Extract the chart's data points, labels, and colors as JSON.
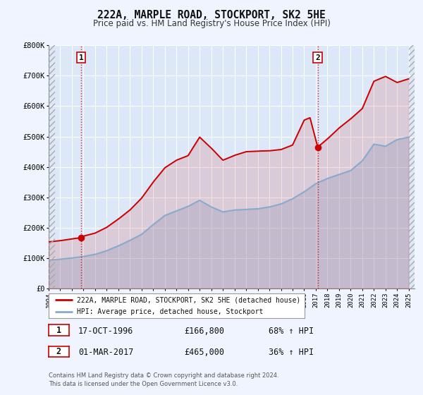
{
  "title": "222A, MARPLE ROAD, STOCKPORT, SK2 5HE",
  "subtitle": "Price paid vs. HM Land Registry's House Price Index (HPI)",
  "background_color": "#f0f4ff",
  "plot_bg_color": "#dce8f8",
  "grid_color": "#c8d8e8",
  "xmin": 1994.0,
  "xmax": 2025.5,
  "ymin": 0,
  "ymax": 800000,
  "yticks": [
    0,
    100000,
    200000,
    300000,
    400000,
    500000,
    600000,
    700000,
    800000
  ],
  "ytick_labels": [
    "£0",
    "£100K",
    "£200K",
    "£300K",
    "£400K",
    "£500K",
    "£600K",
    "£700K",
    "£800K"
  ],
  "sale1_x": 1996.79,
  "sale1_y": 166800,
  "sale2_x": 2017.16,
  "sale2_y": 465000,
  "line1_color": "#cc0000",
  "line2_color": "#88aacc",
  "line1_label": "222A, MARPLE ROAD, STOCKPORT, SK2 5HE (detached house)",
  "line2_label": "HPI: Average price, detached house, Stockport",
  "sale1_date": "17-OCT-1996",
  "sale1_price": "£166,800",
  "sale1_hpi": "68% ↑ HPI",
  "sale2_date": "01-MAR-2017",
  "sale2_price": "£465,000",
  "sale2_hpi": "36% ↑ HPI",
  "footer": "Contains HM Land Registry data © Crown copyright and database right 2024.\nThis data is licensed under the Open Government Licence v3.0.",
  "hpi_years": [
    1994,
    1995,
    1996,
    1997,
    1998,
    1999,
    2000,
    2001,
    2002,
    2003,
    2004,
    2005,
    2006,
    2007,
    2008,
    2009,
    2010,
    2011,
    2012,
    2013,
    2014,
    2015,
    2016,
    2017,
    2018,
    2019,
    2020,
    2021,
    2022,
    2023,
    2024,
    2025
  ],
  "hpi_vals": [
    93000,
    96000,
    100000,
    105000,
    112000,
    124000,
    140000,
    158000,
    178000,
    210000,
    240000,
    255000,
    270000,
    290000,
    268000,
    252000,
    258000,
    260000,
    262000,
    268000,
    278000,
    295000,
    318000,
    345000,
    362000,
    375000,
    388000,
    420000,
    475000,
    468000,
    490000,
    498000
  ],
  "price_years": [
    1994.0,
    1995.0,
    1996.0,
    1996.79,
    1997.0,
    1998.0,
    1999.0,
    2000.0,
    2001.0,
    2002.0,
    2003.0,
    2004.0,
    2005.0,
    2006.0,
    2007.0,
    2008.0,
    2009.0,
    2010.0,
    2011.0,
    2012.0,
    2013.0,
    2014.0,
    2015.0,
    2016.0,
    2016.5,
    2017.16,
    2018.0,
    2019.0,
    2020.0,
    2021.0,
    2022.0,
    2023.0,
    2024.0,
    2025.0
  ],
  "price_vals": [
    153000,
    157000,
    163000,
    166800,
    172000,
    182000,
    201000,
    228000,
    258000,
    297000,
    350000,
    397000,
    422000,
    437000,
    498000,
    462000,
    422000,
    438000,
    450000,
    452000,
    453000,
    457000,
    472000,
    554000,
    562000,
    465000,
    492000,
    528000,
    558000,
    592000,
    682000,
    698000,
    678000,
    690000
  ]
}
